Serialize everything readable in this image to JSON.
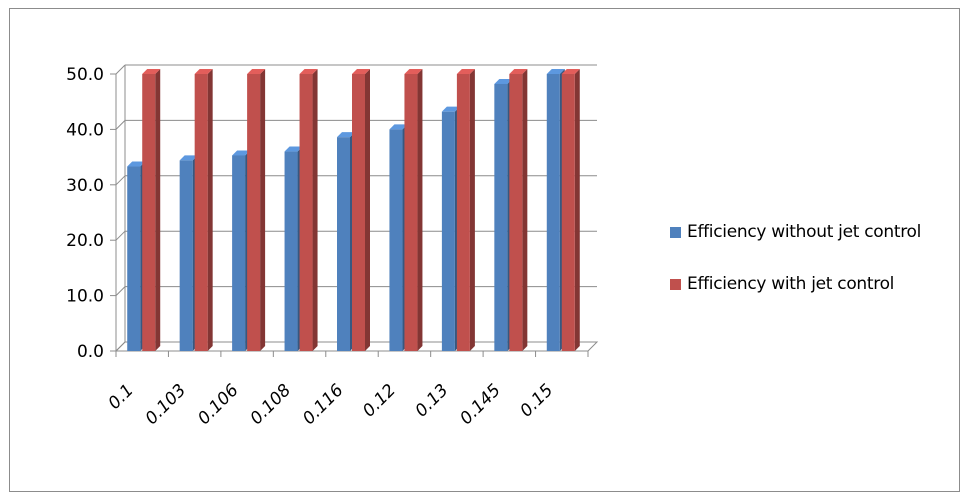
{
  "chart_data": {
    "type": "bar",
    "style": "3d-clustered-column",
    "categories": [
      "0.1",
      "0.103",
      "0.106",
      "0.108",
      "0.116",
      "0.12",
      "0.13",
      "0.145",
      "0.15"
    ],
    "series": [
      {
        "name": "Efficiency without jet control",
        "color": "#4f81bd",
        "values": [
          33.3,
          34.4,
          35.3,
          36.0,
          38.6,
          40.0,
          43.2,
          48.2,
          50.0
        ]
      },
      {
        "name": "Efficiency with jet control",
        "color": "#c0504d",
        "values": [
          50.0,
          50.0,
          50.0,
          50.0,
          50.0,
          50.0,
          50.0,
          50.0,
          50.0
        ]
      }
    ],
    "y_ticks": [
      "0.0",
      "10.0",
      "20.0",
      "30.0",
      "40.0",
      "50.0"
    ],
    "ylim": [
      0,
      50
    ],
    "grid": true,
    "legend_position": "right"
  }
}
